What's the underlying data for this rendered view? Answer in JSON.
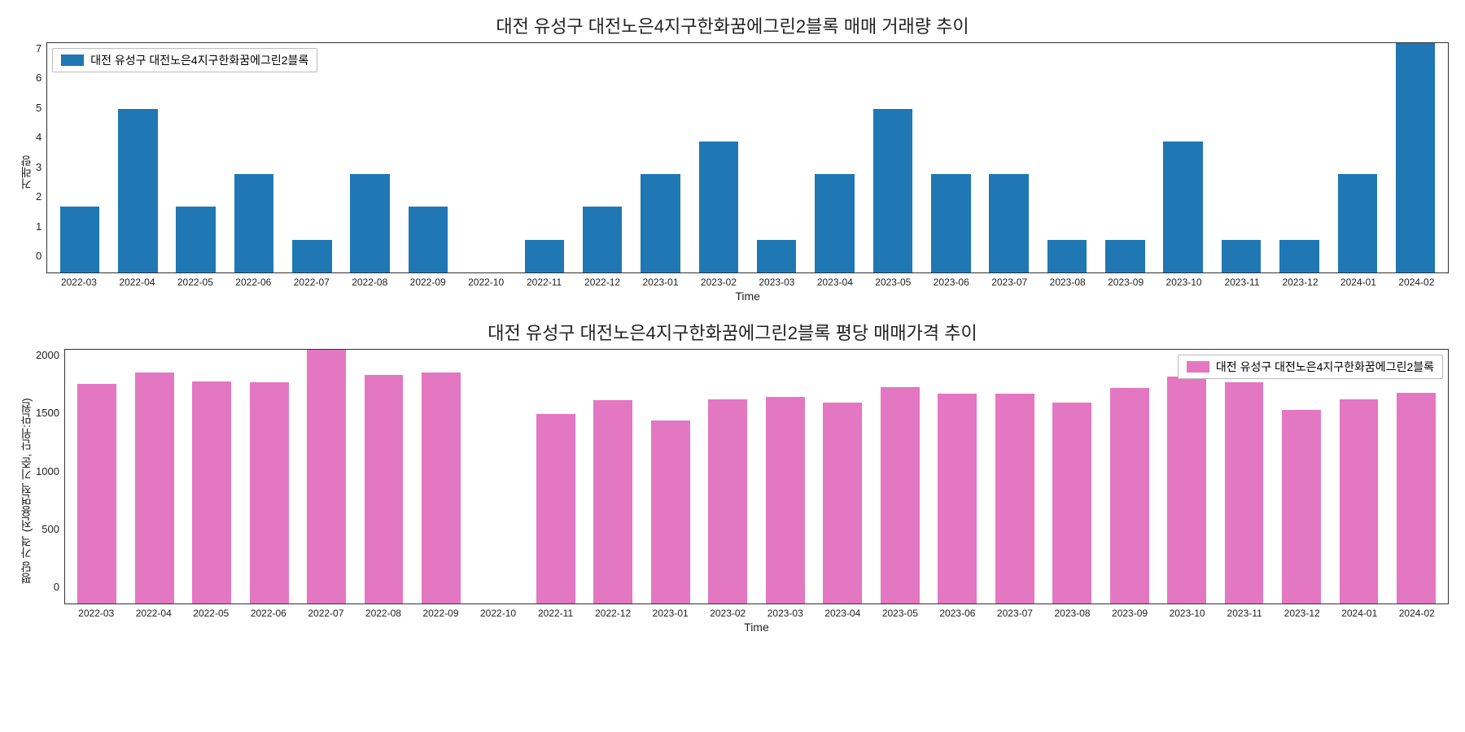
{
  "categories": [
    "2022-03",
    "2022-04",
    "2022-05",
    "2022-06",
    "2022-07",
    "2022-08",
    "2022-09",
    "2022-10",
    "2022-11",
    "2022-12",
    "2023-01",
    "2023-02",
    "2023-03",
    "2023-04",
    "2023-05",
    "2023-06",
    "2023-07",
    "2023-08",
    "2023-09",
    "2023-10",
    "2023-11",
    "2023-12",
    "2024-01",
    "2024-02"
  ],
  "chart1": {
    "type": "bar",
    "title": "대전 유성구 대전노은4지구한화꿈에그린2블록 매매 거래량 추이",
    "ylabel": "거래량",
    "xlabel": "Time",
    "legend_label": "대전 유성구 대전노은4지구한화꿈에그린2블록",
    "legend_position": "top-left",
    "bar_color": "#1f77b4",
    "values": [
      2,
      5,
      2,
      3,
      1,
      3,
      2,
      0,
      1,
      2,
      3,
      4,
      1,
      3,
      5,
      3,
      3,
      1,
      1,
      4,
      1,
      1,
      3,
      7
    ],
    "ymax": 7,
    "yticks": [
      0,
      1,
      2,
      3,
      4,
      5,
      6,
      7
    ],
    "title_fontsize": 22,
    "label_fontsize": 14,
    "tick_fontsize": 13,
    "background_color": "#ffffff",
    "border_color": "#333333",
    "bar_width": 0.68
  },
  "chart2": {
    "type": "bar",
    "title": "대전 유성구 대전노은4지구한화꿈에그린2블록 평당 매매가격 추이",
    "ylabel": "평당 가격 (전용면적 기준, 단위:만원)",
    "xlabel": "Time",
    "legend_label": "대전 유성구 대전노은4지구한화꿈에그린2블록",
    "legend_position": "top-right",
    "bar_color": "#e377c2",
    "values": [
      1950,
      2050,
      1970,
      1960,
      2250,
      2030,
      2050,
      0,
      1680,
      1800,
      1620,
      1810,
      1830,
      1780,
      1920,
      1860,
      1860,
      1780,
      1910,
      2010,
      1960,
      1720,
      1810,
      1870
    ],
    "ymax": 2250,
    "yticks": [
      0,
      500,
      1000,
      1500,
      2000
    ],
    "title_fontsize": 22,
    "label_fontsize": 14,
    "tick_fontsize": 13,
    "background_color": "#ffffff",
    "border_color": "#333333",
    "bar_width": 0.68
  }
}
